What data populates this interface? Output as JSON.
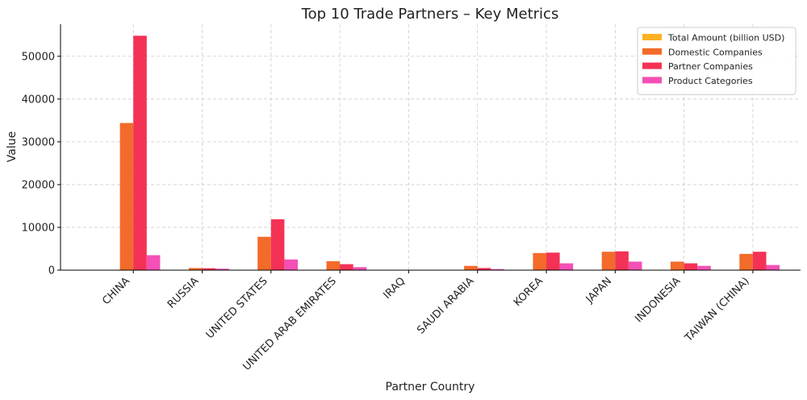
{
  "chart_data": {
    "type": "bar",
    "title": "Top 10 Trade Partners – Key Metrics",
    "xlabel": "Partner Country",
    "ylabel": "Value",
    "ylim": [
      0,
      57500
    ],
    "yticks": [
      0,
      10000,
      20000,
      30000,
      40000,
      50000
    ],
    "grid": true,
    "legend_position": "top-right",
    "categories": [
      "CHINA",
      "RUSSIA",
      "UNITED STATES",
      "UNITED ARAB EMIRATES",
      "IRAQ",
      "SAUDI ARABIA",
      "KOREA",
      "JAPAN",
      "INDONESIA",
      "TAIWAN (CHINA)"
    ],
    "series": [
      {
        "name": "Total Amount (billion USD)",
        "color": "#FDB022",
        "values": [
          40,
          4,
          11,
          5,
          4,
          3,
          2,
          2,
          2,
          2
        ]
      },
      {
        "name": "Domestic Companies",
        "color": "#F26B2A",
        "values": [
          34400,
          500,
          7800,
          2100,
          50,
          1000,
          4000,
          4300,
          2000,
          3800
        ]
      },
      {
        "name": "Partner Companies",
        "color": "#F43255",
        "values": [
          54800,
          450,
          11900,
          1400,
          30,
          500,
          4100,
          4400,
          1600,
          4300
        ]
      },
      {
        "name": "Product Categories",
        "color": "#F450B5",
        "values": [
          3500,
          350,
          2500,
          700,
          20,
          250,
          1600,
          2000,
          1000,
          1200
        ]
      }
    ]
  }
}
